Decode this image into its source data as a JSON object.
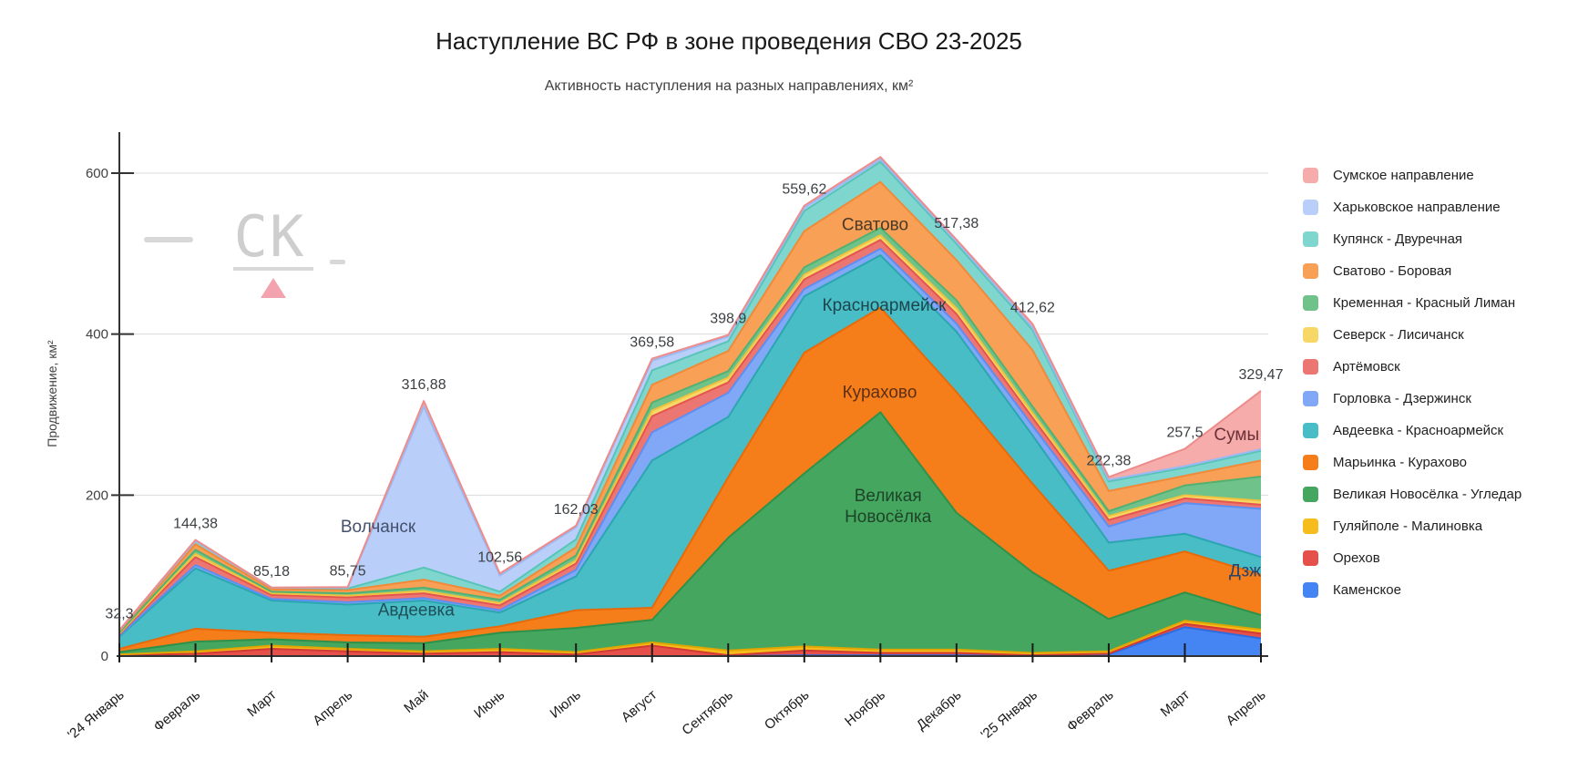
{
  "chart_data": {
    "type": "area",
    "stacked": true,
    "title": "Наступление ВС РФ в зоне проведения СВО 23-2025",
    "subtitle": "Активность наступления на разных направлениях, км²",
    "xlabel": "",
    "ylabel": "Продвижение, км²",
    "yticks": [
      0,
      200,
      400,
      600
    ],
    "ylim": [
      0,
      650
    ],
    "grid": true,
    "legend_position": "right",
    "x": [
      "'24 Январь",
      "Февраль",
      "Март",
      "Апрель",
      "Май",
      "Июнь",
      "Июль",
      "Август",
      "Сентябрь",
      "Октябрь",
      "Ноябрь",
      "Декабрь",
      "'25 Январь",
      "Февраль",
      "Март",
      "Апрель"
    ],
    "total_labels": [
      "32,3",
      "144,38",
      "85,18",
      "85,75",
      "316,88",
      "102,56",
      "162,03",
      "369,58",
      "398,9",
      "559,62",
      null,
      "517,38",
      "412,62",
      "222,38",
      "257,5",
      "329,47"
    ],
    "series": [
      {
        "name": "Сумское направление",
        "color": "#F5ACAA",
        "line": "#EE8C8C",
        "values": [
          0.3,
          1.38,
          0.18,
          0.75,
          6.88,
          2.56,
          2.03,
          2.58,
          1.9,
          2.62,
          3,
          2.38,
          4.62,
          3.38,
          21.5,
          72.47
        ]
      },
      {
        "name": "Харьковское направление",
        "color": "#B9CFFA",
        "line": "#9BB9F2",
        "values": [
          0,
          0,
          0,
          1,
          200,
          20,
          15,
          12,
          6,
          4,
          3,
          3,
          3,
          2,
          2,
          2
        ]
      },
      {
        "name": "Купянск - Двуречная",
        "color": "#7FD6CE",
        "line": "#58C4B8",
        "values": [
          1,
          4,
          2,
          2,
          15,
          5,
          10,
          18,
          12,
          25,
          25,
          20,
          25,
          12,
          10,
          12
        ]
      },
      {
        "name": "Сватово - Боровая",
        "color": "#F8A055",
        "line": "#F08A39",
        "values": [
          2,
          7,
          3,
          4,
          10,
          5,
          10,
          22,
          25,
          45,
          57,
          50,
          70,
          25,
          12,
          20
        ]
      },
      {
        "name": "Кременная - Красный Лиман",
        "color": "#6FC289",
        "line": "#52B172",
        "values": [
          1,
          5,
          2,
          3,
          4,
          4,
          6,
          10,
          8,
          9,
          9,
          10,
          8,
          6,
          12,
          30
        ]
      },
      {
        "name": "Северск - Лисичанск",
        "color": "#F7D765",
        "line": "#EEC23F",
        "values": [
          1,
          4,
          2,
          2,
          3,
          3,
          4,
          7,
          6,
          6,
          6,
          7,
          6,
          5,
          4,
          5
        ]
      },
      {
        "name": "Артёмовск",
        "color": "#EC7672",
        "line": "#E4554F",
        "values": [
          2,
          10,
          5,
          6,
          6,
          6,
          8,
          20,
          13,
          12,
          11,
          12,
          10,
          8,
          6,
          5
        ]
      },
      {
        "name": "Горловка - Дзержинск",
        "color": "#80A8F6",
        "line": "#5D8EF2",
        "values": [
          1,
          4,
          2,
          3,
          3,
          3,
          8,
          35,
          30,
          9,
          8,
          10,
          12,
          20,
          38,
          60
        ]
      },
      {
        "name": "Авдеевка - Красноармейск",
        "color": "#48BDC6",
        "line": "#2BA6B0",
        "values": [
          15,
          75,
          40,
          38,
          45,
          17,
          42,
          183,
          75,
          70,
          65,
          75,
          60,
          35,
          22,
          22
        ]
      },
      {
        "name": "Марьинка - Курахово",
        "color": "#F57E1B",
        "line": "#E76A09",
        "values": [
          4,
          16,
          8,
          9,
          8,
          8,
          22,
          15,
          75,
          150,
          130,
          150,
          110,
          60,
          51,
          50
        ]
      },
      {
        "name": "Великая Новосёлка - Угледар",
        "color": "#44A65F",
        "line": "#2E9149",
        "values": [
          3,
          12,
          8,
          8,
          10,
          20,
          30,
          28,
          140,
          215,
          295,
          170,
          100,
          40,
          35,
          18
        ]
      },
      {
        "name": "Гуляйполе - Малиновка",
        "color": "#F5BC1C",
        "line": "#E0A500",
        "values": [
          1,
          3,
          4,
          3,
          3,
          4,
          3,
          4,
          6,
          5,
          4,
          4,
          3,
          3,
          4,
          5
        ]
      },
      {
        "name": "Орехов",
        "color": "#E5514A",
        "line": "#D23B33",
        "values": [
          1,
          3,
          9,
          6,
          3,
          5,
          2,
          13,
          1,
          6,
          3,
          3,
          1,
          1,
          4,
          6
        ]
      },
      {
        "name": "Каменское",
        "color": "#4484F3",
        "line": "#2D6BE0",
        "values": [
          0,
          0,
          0,
          0,
          0,
          0,
          0,
          0,
          0,
          1,
          1,
          1,
          0,
          2,
          36,
          22
        ]
      }
    ],
    "annotations": [
      {
        "text": "Волчанск",
        "x": 3.4,
        "y": 161,
        "color": "#44506b"
      },
      {
        "text": "Авдеевка",
        "x": 3.9,
        "y": 57,
        "color": "#1f4e57"
      },
      {
        "text": "Сватово",
        "x": 9.93,
        "y": 536,
        "color": "#4a3a28"
      },
      {
        "text": "Красноармейск",
        "x": 10.05,
        "y": 436,
        "color": "#1d454d"
      },
      {
        "text": "Курахово",
        "x": 9.99,
        "y": 328,
        "color": "#5d2f14"
      },
      {
        "text": "Великая Новосёлка",
        "lines": [
          "Великая",
          "Новосёлка"
        ],
        "x": 10.1,
        "y": 186,
        "color": "#1e4428"
      },
      {
        "text": "Сумы",
        "x": 14.68,
        "y": 275,
        "color": "#6b3038"
      },
      {
        "text": "Дзж",
        "x": 14.79,
        "y": 106,
        "color": "#27426b"
      }
    ]
  },
  "watermark": {
    "text": "СК"
  }
}
